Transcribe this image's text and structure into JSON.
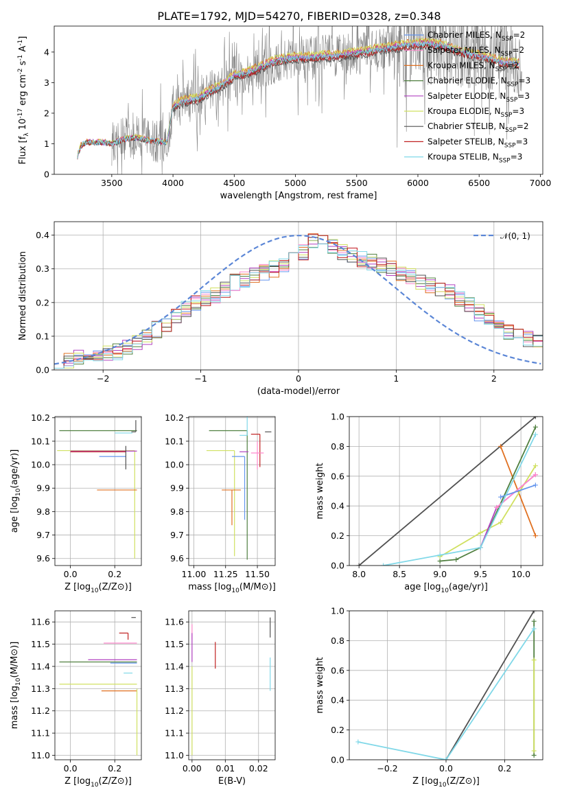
{
  "figure": {
    "title": "PLATE=1792, MJD=54270, FIBERID=0328, z=0.348",
    "colors": {
      "chabrier_miles": "#6495ed",
      "salpeter_miles": "#ff88cc",
      "kroupa_miles": "#e07020",
      "chabrier_elodie": "#4f7f3f",
      "salpeter_elodie": "#b040c0",
      "kroupa_elodie": "#d0e060",
      "chabrier_stelib": "#505050",
      "salpeter_stelib": "#c02020",
      "kroupa_stelib": "#80d8e8",
      "data": "#808080",
      "gaussian": "#5b86d6"
    }
  },
  "chart_data": [
    {
      "id": "spectrum",
      "type": "line",
      "xlabel": "wavelength [Angstrom, rest frame]",
      "ylabel": "Flux [f_λ 10^-17 erg cm^-2 s^-1 A^-1]",
      "xlim": [
        3030,
        7020
      ],
      "ylim": [
        0,
        4.85
      ],
      "xticks": [
        3500,
        4000,
        4500,
        5000,
        5500,
        6000,
        6500,
        7000
      ],
      "yticks": [
        0,
        1,
        2,
        3,
        4
      ],
      "grid": false,
      "legend_position": "top-right",
      "legend": [
        {
          "label": "Chabrier MILES, N_SSP=2",
          "color_key": "chabrier_miles"
        },
        {
          "label": "Salpeter MILES, N_SSP=2",
          "color_key": "salpeter_miles"
        },
        {
          "label": "Kroupa MILES, N_SSP=2",
          "color_key": "kroupa_miles"
        },
        {
          "label": "Chabrier ELODIE, N_SSP=3",
          "color_key": "chabrier_elodie"
        },
        {
          "label": "Salpeter ELODIE, N_SSP=3",
          "color_key": "salpeter_elodie"
        },
        {
          "label": "Kroupa ELODIE, N_SSP=3",
          "color_key": "kroupa_elodie"
        },
        {
          "label": "Chabrier STELIB, N_SSP=2",
          "color_key": "chabrier_stelib"
        },
        {
          "label": "Salpeter STELIB, N_SSP=3",
          "color_key": "salpeter_stelib"
        },
        {
          "label": "Kroupa STELIB, N_SSP=3",
          "color_key": "kroupa_stelib"
        }
      ],
      "model_continuum": {
        "x": [
          3220,
          3250,
          3300,
          3400,
          3500,
          3600,
          3700,
          3800,
          3950,
          4000,
          4100,
          4200,
          4300,
          4400,
          4500,
          4600,
          4700,
          4800,
          4900,
          5000,
          5100,
          5200,
          5300,
          5400,
          5500,
          5600,
          5700,
          5800,
          5900,
          6000,
          6100,
          6200,
          6300,
          6400,
          6500,
          6600,
          6700,
          6830
        ],
        "y": [
          0.6,
          0.95,
          1.05,
          1.05,
          1.0,
          1.15,
          1.2,
          1.1,
          1.05,
          2.2,
          2.4,
          2.45,
          2.7,
          2.9,
          3.2,
          3.3,
          3.45,
          3.65,
          3.75,
          3.8,
          3.8,
          3.85,
          3.85,
          3.9,
          3.95,
          4.0,
          4.1,
          4.15,
          4.2,
          4.25,
          4.25,
          4.2,
          4.05,
          3.95,
          3.85,
          3.75,
          3.65,
          3.6
        ]
      },
      "data_spectrum": {
        "x_range": [
          3500,
          6850
        ],
        "median_level_follows_models": true
      }
    },
    {
      "id": "residuals",
      "type": "line",
      "xlabel": "(data-model)/error",
      "ylabel": "Normed distribution",
      "xlim": [
        -2.5,
        2.5
      ],
      "ylim": [
        0,
        0.44
      ],
      "xticks": [
        -2,
        -1,
        0,
        1,
        2
      ],
      "yticks": [
        0.0,
        0.1,
        0.2,
        0.3,
        0.4
      ],
      "grid": true,
      "legend_position": "top-right",
      "legend": [
        {
          "label": "𝒩(0, 1)",
          "color_key": "gaussian"
        }
      ],
      "gaussian": {
        "mean": 0,
        "sigma": 1
      },
      "histogram_bins": {
        "start": -2.5,
        "width": 0.1
      },
      "histogram_envelope": [
        0.03,
        0.03,
        0.035,
        0.04,
        0.04,
        0.05,
        0.055,
        0.065,
        0.08,
        0.1,
        0.12,
        0.135,
        0.16,
        0.18,
        0.2,
        0.21,
        0.22,
        0.24,
        0.26,
        0.27,
        0.28,
        0.29,
        0.3,
        0.31,
        0.33,
        0.35,
        0.38,
        0.39,
        0.37,
        0.35,
        0.34,
        0.33,
        0.32,
        0.31,
        0.3,
        0.29,
        0.28,
        0.26,
        0.25,
        0.24,
        0.23,
        0.21,
        0.19,
        0.17,
        0.15,
        0.13,
        0.11,
        0.1,
        0.09,
        0.08
      ]
    },
    {
      "id": "age_vs_z",
      "type": "scatter",
      "xlabel": "Z [log10(Z/Z⊙)]",
      "ylabel": "age  [log10(age/yr)]",
      "xlim": [
        -0.07,
        0.32
      ],
      "ylim": [
        9.57,
        10.205
      ],
      "xticks": [
        0.0,
        0.2
      ],
      "yticks": [
        9.6,
        9.7,
        9.8,
        9.9,
        10.0,
        10.1,
        10.2
      ],
      "grid": true,
      "errorbars": [
        {
          "color_key": "chabrier_elodie",
          "x": 0.3,
          "xerr": [
            0.35,
            0.0
          ],
          "y": 10.145,
          "yerr": [
            0.0,
            0.0
          ]
        },
        {
          "color_key": "chabrier_stelib",
          "x": 0.295,
          "xerr": [
            0.02,
            0.0
          ],
          "y": 10.14,
          "yerr": [
            0.0,
            0.05
          ]
        },
        {
          "color_key": "kroupa_stelib",
          "x": 0.28,
          "xerr": [
            0.08,
            0.0
          ],
          "y": 10.135,
          "yerr": [
            0.0,
            0.0
          ]
        },
        {
          "color_key": "kroupa_elodie",
          "x": 0.29,
          "xerr": [
            0.35,
            0.0
          ],
          "y": 10.06,
          "yerr": [
            0.46,
            0.0
          ]
        },
        {
          "color_key": "salpeter_elodie",
          "x": 0.3,
          "xerr": [
            0.3,
            0.0
          ],
          "y": 10.058,
          "yerr": [
            0.0,
            0.0
          ]
        },
        {
          "color_key": "salpeter_stelib",
          "x": 0.25,
          "xerr": [
            0.25,
            0.0
          ],
          "y": 10.055,
          "yerr": [
            0.0,
            0.0
          ]
        },
        {
          "color_key": "chabrier_miles",
          "x": 0.25,
          "xerr": [
            0.12,
            0.0
          ],
          "y": 10.035,
          "yerr": [
            0.0,
            0.0
          ]
        },
        {
          "color_key": "kroupa_miles",
          "x": 0.3,
          "xerr": [
            0.18,
            0.0
          ],
          "y": 9.892,
          "yerr": [
            0.0,
            0.0
          ]
        },
        {
          "color_key": "chabrier_stelib",
          "x": 0.25,
          "xerr": [
            0.0,
            0.0
          ],
          "y": 10.0,
          "yerr": [
            0.02,
            0.08
          ]
        }
      ]
    },
    {
      "id": "age_vs_mass",
      "type": "scatter",
      "xlabel": "mass [log10(M/M⊙)]",
      "ylabel": "",
      "xlim": [
        10.96,
        11.64
      ],
      "ylim": [
        9.57,
        10.205
      ],
      "xticks": [
        11.0,
        11.25,
        11.5
      ],
      "yticks": [
        9.6,
        9.7,
        9.8,
        9.9,
        10.0,
        10.1,
        10.2
      ],
      "grid": true,
      "errorbars": [
        {
          "color_key": "chabrier_elodie",
          "x": 11.42,
          "xerr": [
            0.3,
            0.0
          ],
          "y": 10.145,
          "yerr": [
            0.55,
            0.0
          ]
        },
        {
          "color_key": "chabrier_stelib",
          "x": 11.61,
          "xerr": [
            0.05,
            0.0
          ],
          "y": 10.14,
          "yerr": [
            0.0,
            0.0
          ]
        },
        {
          "color_key": "salpeter_stelib",
          "x": 11.52,
          "xerr": [
            0.07,
            0.0
          ],
          "y": 10.13,
          "yerr": [
            0.14,
            0.0
          ]
        },
        {
          "color_key": "kroupa_stelib",
          "x": 11.42,
          "xerr": [
            0.06,
            0.0
          ],
          "y": 10.125,
          "yerr": [
            0.0,
            0.1
          ]
        },
        {
          "color_key": "kroupa_elodie",
          "x": 11.32,
          "xerr": [
            0.22,
            0.0
          ],
          "y": 10.06,
          "yerr": [
            0.45,
            0.0
          ]
        },
        {
          "color_key": "salpeter_elodie",
          "x": 11.43,
          "xerr": [
            0.07,
            0.0
          ],
          "y": 10.055,
          "yerr": [
            0.0,
            0.0
          ]
        },
        {
          "color_key": "salpeter_miles",
          "x": 11.5,
          "xerr": [
            0.05,
            0.05
          ],
          "y": 10.05,
          "yerr": [
            0.07,
            0.05
          ]
        },
        {
          "color_key": "chabrier_miles",
          "x": 11.4,
          "xerr": [
            0.1,
            0.0
          ],
          "y": 10.035,
          "yerr": [
            0.27,
            0.0
          ]
        },
        {
          "color_key": "kroupa_miles",
          "x": 11.3,
          "xerr": [
            0.08,
            0.07
          ],
          "y": 9.892,
          "yerr": [
            0.15,
            0.0
          ]
        }
      ]
    },
    {
      "id": "mass_weight_vs_age",
      "type": "line",
      "xlabel": "age  [log10(age/yr)]",
      "ylabel": "mass weight",
      "xlim": [
        7.88,
        10.27
      ],
      "ylim": [
        0,
        1
      ],
      "xticks": [
        8.0,
        8.5,
        9.0,
        9.5,
        10.0
      ],
      "yticks": [
        0.0,
        0.2,
        0.4,
        0.6,
        0.8,
        1.0
      ],
      "grid": true,
      "series": [
        {
          "color_key": "chabrier_stelib",
          "x": [
            8.0,
            10.18
          ],
          "y": [
            0.0,
            1.0
          ]
        },
        {
          "color_key": "kroupa_miles",
          "x": [
            9.75,
            10.18
          ],
          "y": [
            0.8,
            0.2
          ]
        },
        {
          "color_key": "chabrier_elodie",
          "x": [
            9.0,
            9.2,
            9.5,
            10.18
          ],
          "y": [
            0.03,
            0.04,
            0.12,
            0.93
          ]
        },
        {
          "color_key": "kroupa_elodie",
          "x": [
            9.0,
            9.5,
            9.75,
            10.18
          ],
          "y": [
            0.06,
            0.22,
            0.29,
            0.67
          ]
        },
        {
          "color_key": "salpeter_elodie",
          "x": [
            9.5,
            9.7,
            10.18
          ],
          "y": [
            0.12,
            0.39,
            0.61
          ]
        },
        {
          "color_key": "salpeter_miles",
          "x": [
            9.7,
            10.18
          ],
          "y": [
            0.39,
            0.61
          ]
        },
        {
          "color_key": "chabrier_miles",
          "x": [
            9.75,
            10.18
          ],
          "y": [
            0.46,
            0.54
          ]
        },
        {
          "color_key": "kroupa_stelib",
          "x": [
            8.3,
            9.0,
            9.5,
            10.18
          ],
          "y": [
            0.0,
            0.07,
            0.12,
            0.88
          ]
        }
      ]
    },
    {
      "id": "mass_vs_z",
      "type": "scatter",
      "xlabel": "Z [log10(Z/Z⊙)]",
      "ylabel": "mass [log10(M/M⊙)]",
      "xlim": [
        -0.07,
        0.32
      ],
      "ylim": [
        10.98,
        11.65
      ],
      "xticks": [
        0.0,
        0.2
      ],
      "yticks": [
        11.0,
        11.1,
        11.2,
        11.3,
        11.4,
        11.5,
        11.6
      ],
      "grid": true,
      "errorbars": [
        {
          "color_key": "chabrier_stelib",
          "x": 0.295,
          "xerr": [
            0.02,
            0.0
          ],
          "y": 11.62,
          "yerr": [
            0.0,
            0.0
          ]
        },
        {
          "color_key": "salpeter_stelib",
          "x": 0.26,
          "xerr": [
            0.04,
            0.0
          ],
          "y": 11.55,
          "yerr": [
            0.03,
            0.0
          ]
        },
        {
          "color_key": "salpeter_miles",
          "x": 0.3,
          "xerr": [
            0.15,
            0.0
          ],
          "y": 11.505,
          "yerr": [
            0.0,
            0.0
          ]
        },
        {
          "color_key": "salpeter_elodie",
          "x": 0.3,
          "xerr": [
            0.22,
            0.0
          ],
          "y": 11.43,
          "yerr": [
            0.0,
            0.0
          ]
        },
        {
          "color_key": "chabrier_elodie",
          "x": 0.3,
          "xerr": [
            0.35,
            0.0
          ],
          "y": 11.42,
          "yerr": [
            0.0,
            0.0
          ]
        },
        {
          "color_key": "chabrier_miles",
          "x": 0.3,
          "xerr": [
            0.12,
            0.0
          ],
          "y": 11.415,
          "yerr": [
            0.0,
            0.0
          ]
        },
        {
          "color_key": "kroupa_stelib",
          "x": 0.28,
          "xerr": [
            0.04,
            0.0
          ],
          "y": 11.37,
          "yerr": [
            0.0,
            0.0
          ]
        },
        {
          "color_key": "kroupa_elodie",
          "x": 0.3,
          "xerr": [
            0.35,
            0.0
          ],
          "y": 11.32,
          "yerr": [
            0.0,
            0.0
          ]
        },
        {
          "color_key": "kroupa_miles",
          "x": 0.3,
          "xerr": [
            0.16,
            0.0
          ],
          "y": 11.29,
          "yerr": [
            0.0,
            0.0
          ]
        },
        {
          "color_key": "kroupa_elodie",
          "x": 0.3,
          "xerr": [
            0.0,
            0.0
          ],
          "y": 11.3,
          "yerr": [
            0.3,
            0.0
          ]
        }
      ]
    },
    {
      "id": "mass_vs_ebv",
      "type": "scatter",
      "xlabel": "E(B-V)",
      "ylabel": "",
      "xlim": [
        -0.001,
        0.025
      ],
      "ylim": [
        10.98,
        11.65
      ],
      "xticks": [
        0.0,
        0.01,
        0.02
      ],
      "yticks": [
        11.0,
        11.1,
        11.2,
        11.3,
        11.4,
        11.5,
        11.6
      ],
      "grid": true,
      "errorbars": [
        {
          "color_key": "salpeter_miles",
          "x": 0.0,
          "xerr": [
            0.0,
            0.0
          ],
          "y": 11.52,
          "yerr": [
            0.0,
            0.07
          ]
        },
        {
          "color_key": "salpeter_elodie",
          "x": 0.0,
          "xerr": [
            0.0,
            0.0
          ],
          "y": 11.48,
          "yerr": [
            0.06,
            0.07
          ]
        },
        {
          "color_key": "kroupa_elodie",
          "x": 0.0,
          "xerr": [
            0.0,
            0.0
          ],
          "y": 11.2,
          "yerr": [
            0.2,
            0.2
          ]
        },
        {
          "color_key": "salpeter_stelib",
          "x": 0.007,
          "xerr": [
            0.0,
            0.0
          ],
          "y": 11.45,
          "yerr": [
            0.06,
            0.06
          ]
        },
        {
          "color_key": "chabrier_stelib",
          "x": 0.0235,
          "xerr": [
            0.0,
            0.0
          ],
          "y": 11.57,
          "yerr": [
            0.04,
            0.05
          ]
        },
        {
          "color_key": "kroupa_stelib",
          "x": 0.0235,
          "xerr": [
            0.0,
            0.0
          ],
          "y": 11.37,
          "yerr": [
            0.08,
            0.07
          ]
        }
      ]
    },
    {
      "id": "mass_weight_vs_z",
      "type": "line",
      "xlabel": "Z [log10(Z/Z⊙)]",
      "ylabel": "mass weight",
      "xlim": [
        -0.33,
        0.33
      ],
      "ylim": [
        0,
        1
      ],
      "xticks": [
        -0.2,
        0.0,
        0.2
      ],
      "yticks": [
        0.0,
        0.2,
        0.4,
        0.6,
        0.8,
        1.0
      ],
      "grid": true,
      "series": [
        {
          "color_key": "chabrier_stelib",
          "x": [
            0.0,
            0.3
          ],
          "y": [
            0.0,
            1.0
          ]
        },
        {
          "color_key": "chabrier_elodie",
          "x": [
            0.3,
            0.3
          ],
          "y": [
            0.03,
            0.93
          ]
        },
        {
          "color_key": "kroupa_elodie",
          "x": [
            0.3,
            0.3
          ],
          "y": [
            0.06,
            0.67
          ]
        },
        {
          "color_key": "kroupa_stelib",
          "x": [
            -0.3,
            0.0,
            0.3
          ],
          "y": [
            0.12,
            0.0,
            0.88
          ]
        }
      ]
    }
  ]
}
